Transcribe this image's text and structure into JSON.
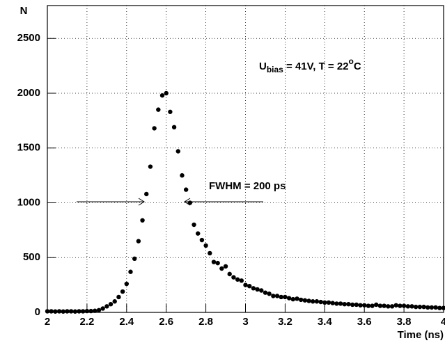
{
  "chart_data": {
    "type": "scatter",
    "y_label": "N",
    "x_label": "Time (ns)",
    "annotation_parts": [
      "U",
      "bias",
      " = 41V, T = 22",
      "o",
      "C"
    ],
    "fwhm_label": "FWHM = 200 ps",
    "color": "#000000",
    "grid": true,
    "xlim": [
      2,
      4
    ],
    "ylim": [
      0,
      2800
    ],
    "xticks": [
      2,
      2.2,
      2.4,
      2.6,
      2.8,
      3,
      3.2,
      3.4,
      3.6,
      3.8,
      4
    ],
    "yticks": [
      0,
      500,
      1000,
      1500,
      2000,
      2500
    ],
    "x": [
      2.0,
      2.02,
      2.04,
      2.06,
      2.08,
      2.1,
      2.12,
      2.14,
      2.16,
      2.18,
      2.2,
      2.22,
      2.24,
      2.26,
      2.28,
      2.3,
      2.32,
      2.34,
      2.36,
      2.38,
      2.4,
      2.42,
      2.44,
      2.46,
      2.48,
      2.5,
      2.52,
      2.54,
      2.56,
      2.58,
      2.6,
      2.62,
      2.64,
      2.66,
      2.68,
      2.7,
      2.72,
      2.74,
      2.76,
      2.78,
      2.8,
      2.82,
      2.84,
      2.86,
      2.88,
      2.9,
      2.92,
      2.94,
      2.96,
      2.98,
      3.0,
      3.02,
      3.04,
      3.06,
      3.08,
      3.1,
      3.12,
      3.14,
      3.16,
      3.18,
      3.2,
      3.22,
      3.24,
      3.26,
      3.28,
      3.3,
      3.32,
      3.34,
      3.36,
      3.38,
      3.4,
      3.42,
      3.44,
      3.46,
      3.48,
      3.5,
      3.52,
      3.54,
      3.56,
      3.58,
      3.6,
      3.62,
      3.64,
      3.66,
      3.68,
      3.7,
      3.72,
      3.74,
      3.76,
      3.78,
      3.8,
      3.82,
      3.84,
      3.86,
      3.88,
      3.9,
      3.92,
      3.94,
      3.96,
      3.98,
      4.0
    ],
    "values": [
      10,
      10,
      8,
      10,
      8,
      10,
      10,
      8,
      10,
      10,
      12,
      12,
      15,
      20,
      35,
      55,
      75,
      100,
      140,
      190,
      260,
      370,
      490,
      650,
      840,
      1080,
      1330,
      1680,
      1850,
      1980,
      2000,
      1830,
      1690,
      1470,
      1250,
      1120,
      1000,
      800,
      720,
      660,
      610,
      540,
      460,
      450,
      400,
      420,
      350,
      320,
      300,
      290,
      250,
      240,
      220,
      210,
      200,
      180,
      170,
      150,
      150,
      140,
      140,
      130,
      120,
      125,
      115,
      110,
      105,
      100,
      100,
      95,
      90,
      90,
      85,
      80,
      80,
      75,
      75,
      70,
      70,
      65,
      65,
      60,
      60,
      70,
      60,
      60,
      55,
      55,
      65,
      60,
      60,
      55,
      55,
      50,
      50,
      50,
      45,
      45,
      45,
      40,
      40
    ]
  }
}
